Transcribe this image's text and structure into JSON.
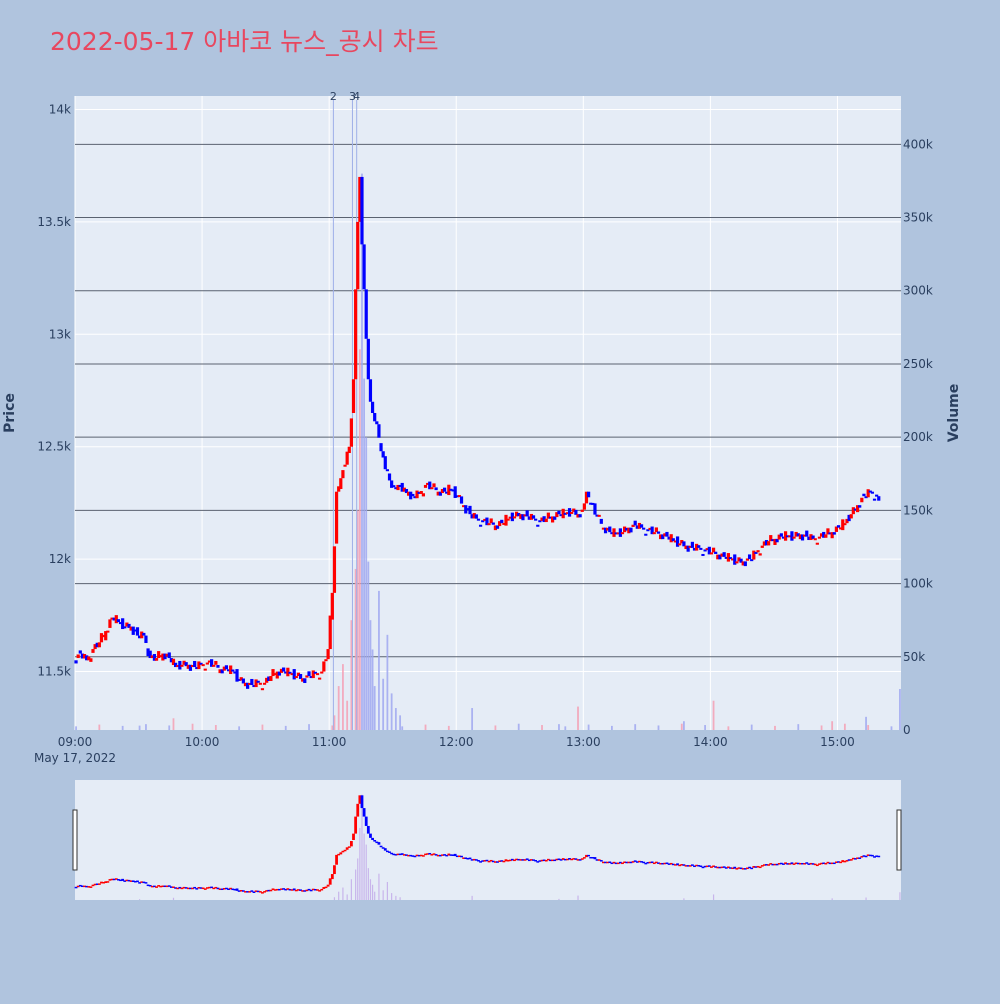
{
  "title": "2022-05-17 아바코 뉴스_공시 차트",
  "colors": {
    "page_bg": "#b0c4de",
    "plot_bg": "#e5ecf6",
    "up": "#ff0000",
    "down": "#0000ff",
    "title": "#e8475f",
    "hline": "#5a6270",
    "news_line": "#9fb0e8"
  },
  "chart_data": {
    "type": "candlestick",
    "ylabel": "Price",
    "y2label": "Volume",
    "ylim": [
      11240,
      14060
    ],
    "y2lim": [
      0,
      433000
    ],
    "xlim_minutes": [
      0,
      390
    ],
    "x_start_label": "May 17, 2022",
    "x_ticks": [
      {
        "label": "09:00",
        "minute": 0
      },
      {
        "label": "10:00",
        "minute": 60
      },
      {
        "label": "11:00",
        "minute": 120
      },
      {
        "label": "12:00",
        "minute": 180
      },
      {
        "label": "13:00",
        "minute": 240
      },
      {
        "label": "14:00",
        "minute": 300
      },
      {
        "label": "15:00",
        "minute": 360
      }
    ],
    "y_ticks": [
      {
        "label": "11.5k",
        "value": 11500
      },
      {
        "label": "12k",
        "value": 12000
      },
      {
        "label": "12.5k",
        "value": 12500
      },
      {
        "label": "13k",
        "value": 13000
      },
      {
        "label": "13.5k",
        "value": 13500
      },
      {
        "label": "14k",
        "value": 14000
      }
    ],
    "y2_ticks": [
      {
        "label": "0",
        "value": 0
      },
      {
        "label": "50k",
        "value": 50000
      },
      {
        "label": "100k",
        "value": 100000
      },
      {
        "label": "150k",
        "value": 150000
      },
      {
        "label": "200k",
        "value": 200000
      },
      {
        "label": "250k",
        "value": 250000
      },
      {
        "label": "300k",
        "value": 300000
      },
      {
        "label": "350k",
        "value": 350000
      },
      {
        "label": "400k",
        "value": 400000
      }
    ],
    "volume_hlines": [
      50000,
      100000,
      150000,
      200000,
      250000,
      300000,
      350000,
      400000
    ],
    "news_markers": [
      {
        "label": "2",
        "minute": 122
      },
      {
        "label": "3",
        "minute": 131
      },
      {
        "label": "4",
        "minute": 133
      }
    ],
    "price_series": [
      [
        0,
        11550
      ],
      [
        3,
        11580
      ],
      [
        6,
        11550
      ],
      [
        9,
        11600
      ],
      [
        12,
        11630
      ],
      [
        15,
        11680
      ],
      [
        18,
        11740
      ],
      [
        21,
        11720
      ],
      [
        24,
        11700
      ],
      [
        27,
        11700
      ],
      [
        30,
        11660
      ],
      [
        33,
        11660
      ],
      [
        36,
        11560
      ],
      [
        39,
        11560
      ],
      [
        42,
        11580
      ],
      [
        45,
        11560
      ],
      [
        48,
        11520
      ],
      [
        51,
        11530
      ],
      [
        54,
        11530
      ],
      [
        57,
        11520
      ],
      [
        60,
        11530
      ],
      [
        63,
        11540
      ],
      [
        66,
        11530
      ],
      [
        69,
        11510
      ],
      [
        72,
        11510
      ],
      [
        75,
        11500
      ],
      [
        78,
        11460
      ],
      [
        81,
        11450
      ],
      [
        84,
        11440
      ],
      [
        87,
        11450
      ],
      [
        90,
        11450
      ],
      [
        93,
        11480
      ],
      [
        96,
        11500
      ],
      [
        99,
        11500
      ],
      [
        102,
        11490
      ],
      [
        105,
        11480
      ],
      [
        108,
        11470
      ],
      [
        111,
        11480
      ],
      [
        114,
        11490
      ],
      [
        117,
        11500
      ],
      [
        120,
        11600
      ],
      [
        122,
        11850
      ],
      [
        124,
        12300
      ],
      [
        126,
        12360
      ],
      [
        128,
        12420
      ],
      [
        130,
        12500
      ],
      [
        132,
        12800
      ],
      [
        133,
        13200
      ],
      [
        134,
        13500
      ],
      [
        135,
        13700
      ],
      [
        136,
        13400
      ],
      [
        137,
        13200
      ],
      [
        138,
        12980
      ],
      [
        139,
        12800
      ],
      [
        140,
        12700
      ],
      [
        141,
        12650
      ],
      [
        143,
        12600
      ],
      [
        145,
        12480
      ],
      [
        147,
        12400
      ],
      [
        149,
        12350
      ],
      [
        151,
        12320
      ],
      [
        153,
        12330
      ],
      [
        155,
        12300
      ],
      [
        158,
        12300
      ],
      [
        160,
        12280
      ],
      [
        163,
        12290
      ],
      [
        166,
        12330
      ],
      [
        169,
        12320
      ],
      [
        172,
        12300
      ],
      [
        175,
        12300
      ],
      [
        178,
        12310
      ],
      [
        181,
        12280
      ],
      [
        184,
        12240
      ],
      [
        187,
        12200
      ],
      [
        190,
        12180
      ],
      [
        193,
        12170
      ],
      [
        196,
        12160
      ],
      [
        199,
        12150
      ],
      [
        202,
        12160
      ],
      [
        205,
        12180
      ],
      [
        208,
        12190
      ],
      [
        211,
        12200
      ],
      [
        214,
        12190
      ],
      [
        217,
        12180
      ],
      [
        220,
        12170
      ],
      [
        223,
        12180
      ],
      [
        226,
        12190
      ],
      [
        229,
        12200
      ],
      [
        232,
        12200
      ],
      [
        235,
        12210
      ],
      [
        238,
        12200
      ],
      [
        240,
        12220
      ],
      [
        242,
        12300
      ],
      [
        244,
        12250
      ],
      [
        247,
        12190
      ],
      [
        250,
        12140
      ],
      [
        253,
        12120
      ],
      [
        256,
        12110
      ],
      [
        259,
        12120
      ],
      [
        262,
        12140
      ],
      [
        265,
        12150
      ],
      [
        268,
        12140
      ],
      [
        271,
        12130
      ],
      [
        274,
        12120
      ],
      [
        277,
        12110
      ],
      [
        280,
        12100
      ],
      [
        283,
        12080
      ],
      [
        286,
        12070
      ],
      [
        289,
        12060
      ],
      [
        292,
        12050
      ],
      [
        295,
        12050
      ],
      [
        298,
        12040
      ],
      [
        301,
        12030
      ],
      [
        304,
        12020
      ],
      [
        307,
        12010
      ],
      [
        310,
        12000
      ],
      [
        313,
        11990
      ],
      [
        316,
        11990
      ],
      [
        319,
        12000
      ],
      [
        322,
        12030
      ],
      [
        325,
        12060
      ],
      [
        328,
        12080
      ],
      [
        331,
        12090
      ],
      [
        334,
        12100
      ],
      [
        337,
        12100
      ],
      [
        340,
        12100
      ],
      [
        343,
        12110
      ],
      [
        346,
        12100
      ],
      [
        349,
        12090
      ],
      [
        352,
        12100
      ],
      [
        355,
        12110
      ],
      [
        358,
        12120
      ],
      [
        361,
        12140
      ],
      [
        364,
        12160
      ],
      [
        367,
        12200
      ],
      [
        370,
        12240
      ],
      [
        373,
        12280
      ],
      [
        376,
        12300
      ],
      [
        379,
        12280
      ],
      [
        380,
        12260
      ]
    ],
    "volume_spikes": [
      {
        "minute": 122,
        "value": 10000
      },
      {
        "minute": 124,
        "value": 30000
      },
      {
        "minute": 126,
        "value": 45000
      },
      {
        "minute": 128,
        "value": 20000
      },
      {
        "minute": 130,
        "value": 75000
      },
      {
        "minute": 132,
        "value": 110000
      },
      {
        "minute": 133,
        "value": 150000
      },
      {
        "minute": 134,
        "value": 260000
      },
      {
        "minute": 135,
        "value": 380000
      },
      {
        "minute": 136,
        "value": 240000
      },
      {
        "minute": 137,
        "value": 200000
      },
      {
        "minute": 138,
        "value": 115000
      },
      {
        "minute": 139,
        "value": 75000
      },
      {
        "minute": 140,
        "value": 55000
      },
      {
        "minute": 141,
        "value": 30000
      },
      {
        "minute": 143,
        "value": 95000
      },
      {
        "minute": 145,
        "value": 35000
      },
      {
        "minute": 147,
        "value": 65000
      },
      {
        "minute": 149,
        "value": 25000
      },
      {
        "minute": 151,
        "value": 15000
      },
      {
        "minute": 153,
        "value": 10000
      },
      {
        "minute": 30,
        "value": 3000
      },
      {
        "minute": 46,
        "value": 8000
      },
      {
        "minute": 187,
        "value": 15000
      },
      {
        "minute": 228,
        "value": 4000
      },
      {
        "minute": 237,
        "value": 16000
      },
      {
        "minute": 287,
        "value": 6000
      },
      {
        "minute": 301,
        "value": 20000
      },
      {
        "minute": 357,
        "value": 6000
      },
      {
        "minute": 373,
        "value": 9000
      },
      {
        "minute": 389,
        "value": 28000
      }
    ],
    "rangeslider": true
  }
}
